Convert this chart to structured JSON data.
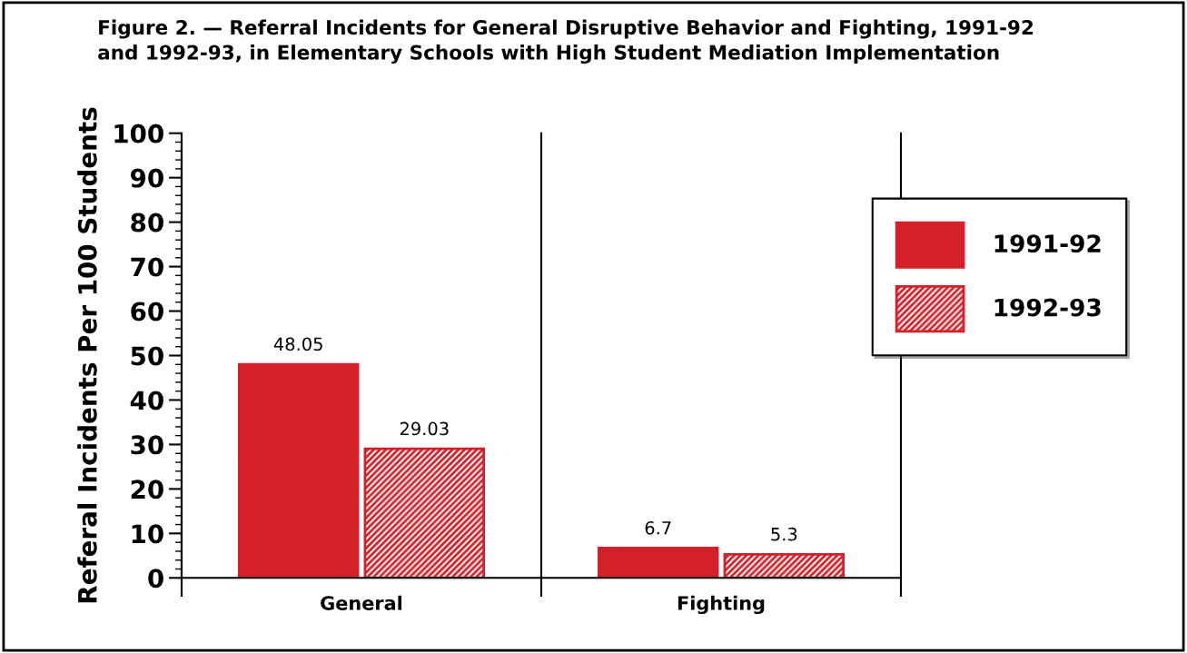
{
  "chart_data": {
    "type": "bar",
    "title": "Figure 2. — Referral Incidents for General Disruptive Behavior and Fighting, 1991-92\nand 1992-93, in Elementary Schools with High Student Mediation Implementation",
    "ylabel": "Referal Incidents Per 100 Students",
    "categories": [
      "General",
      "Fighting"
    ],
    "series": [
      {
        "name": "1991-92",
        "color": "#d42029",
        "values": [
          48.05,
          6.7
        ]
      },
      {
        "name": "1992-93",
        "color": "#d42029",
        "values": [
          29.03,
          5.3
        ]
      }
    ],
    "ylim": [
      0,
      100
    ],
    "yticks": [
      0,
      10,
      20,
      30,
      40,
      50,
      60,
      70,
      80,
      90,
      100
    ],
    "data_labels": true,
    "legend": "top right",
    "grid": false
  }
}
